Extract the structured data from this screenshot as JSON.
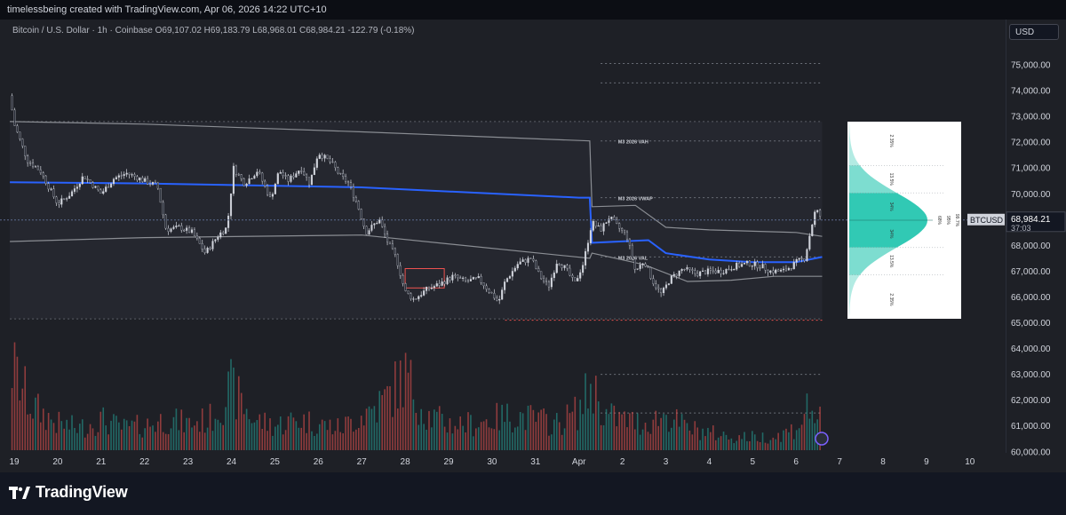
{
  "header": {
    "caption": "timelessbeing created with TradingView.com, Apr 06, 2026 14:22 UTC+10"
  },
  "legend": {
    "text": "Bitcoin / U.S. Dollar · 1h · Coinbase  O69,107.02  H69,183.79  L68,968.01  C68,984.21  -122.79 (-0.18%)"
  },
  "currency_label": "USD",
  "brand": {
    "name": "TradingView"
  },
  "colors": {
    "up": "#26a69a",
    "down": "#ef5350",
    "vwap": "#2962ff",
    "band": "#8a8d93",
    "profile_fill": "#26c6b0"
  },
  "chart_data": {
    "type": "candlestick",
    "symbol": "BTCUSD",
    "timeframe": "1h",
    "exchange": "Coinbase",
    "ohlc_last": {
      "open": 69107.02,
      "high": 69183.79,
      "low": 68968.01,
      "close": 68984.21,
      "change": -122.79,
      "change_pct": -0.18
    },
    "current_price_label": "68,984.21",
    "countdown": "37:03",
    "symbol_tag": "BTCUSD",
    "ylim": [
      60000,
      75500
    ],
    "price_ticks": [
      {
        "value": 75000,
        "label": "75,000.00"
      },
      {
        "value": 74000,
        "label": "74,000.00"
      },
      {
        "value": 73000,
        "label": "73,000.00"
      },
      {
        "value": 72000,
        "label": "72,000.00"
      },
      {
        "value": 71000,
        "label": "71,000.00"
      },
      {
        "value": 70000,
        "label": "70,000.00"
      },
      {
        "value": 69000,
        "label": "69,000.00"
      },
      {
        "value": 68000,
        "label": "68,000.00"
      },
      {
        "value": 67000,
        "label": "67,000.00"
      },
      {
        "value": 66000,
        "label": "66,000.00"
      },
      {
        "value": 65000,
        "label": "65,000.00"
      },
      {
        "value": 64000,
        "label": "64,000.00"
      },
      {
        "value": 63000,
        "label": "63,000.00"
      },
      {
        "value": 62000,
        "label": "62,000.00"
      },
      {
        "value": 61000,
        "label": "61,000.00"
      },
      {
        "value": 60000,
        "label": "60,000.00"
      }
    ],
    "x_ticks": [
      {
        "d": 19,
        "label": "19"
      },
      {
        "d": 20,
        "label": "20"
      },
      {
        "d": 21,
        "label": "21"
      },
      {
        "d": 22,
        "label": "22"
      },
      {
        "d": 23,
        "label": "23"
      },
      {
        "d": 24,
        "label": "24"
      },
      {
        "d": 25,
        "label": "25"
      },
      {
        "d": 26,
        "label": "26"
      },
      {
        "d": 27,
        "label": "27"
      },
      {
        "d": 28,
        "label": "28"
      },
      {
        "d": 29,
        "label": "29"
      },
      {
        "d": 30,
        "label": "30"
      },
      {
        "d": 31,
        "label": "31"
      },
      {
        "d": 32,
        "label": "Apr"
      },
      {
        "d": 33,
        "label": "2"
      },
      {
        "d": 34,
        "label": "3"
      },
      {
        "d": 35,
        "label": "4"
      },
      {
        "d": 36,
        "label": "5"
      },
      {
        "d": 37,
        "label": "6"
      },
      {
        "d": 38,
        "label": "7"
      },
      {
        "d": 39,
        "label": "8"
      },
      {
        "d": 40,
        "label": "9"
      },
      {
        "d": 41,
        "label": "10"
      }
    ],
    "price_path": [
      [
        18.9,
        73800
      ],
      [
        19.0,
        72700
      ],
      [
        19.3,
        71300
      ],
      [
        19.6,
        70900
      ],
      [
        20.0,
        69600
      ],
      [
        20.3,
        70000
      ],
      [
        20.6,
        70700
      ],
      [
        21.0,
        70000
      ],
      [
        21.3,
        70600
      ],
      [
        21.6,
        70800
      ],
      [
        22.0,
        70500
      ],
      [
        22.3,
        70300
      ],
      [
        22.5,
        68600
      ],
      [
        22.8,
        68700
      ],
      [
        23.1,
        68500
      ],
      [
        23.4,
        67700
      ],
      [
        23.7,
        68400
      ],
      [
        23.9,
        68700
      ],
      [
        24.05,
        71000
      ],
      [
        24.3,
        70400
      ],
      [
        24.6,
        70900
      ],
      [
        24.9,
        69800
      ],
      [
        25.1,
        70900
      ],
      [
        25.3,
        70500
      ],
      [
        25.6,
        71000
      ],
      [
        25.8,
        70400
      ],
      [
        26.0,
        71600
      ],
      [
        26.3,
        71200
      ],
      [
        26.5,
        70700
      ],
      [
        26.7,
        70400
      ],
      [
        26.9,
        69600
      ],
      [
        27.1,
        68500
      ],
      [
        27.4,
        69000
      ],
      [
        27.6,
        68100
      ],
      [
        27.8,
        67500
      ],
      [
        28.0,
        66200
      ],
      [
        28.2,
        65900
      ],
      [
        28.5,
        66300
      ],
      [
        28.8,
        66500
      ],
      [
        29.1,
        66800
      ],
      [
        29.4,
        66600
      ],
      [
        29.7,
        66700
      ],
      [
        29.9,
        66300
      ],
      [
        30.15,
        65800
      ],
      [
        30.3,
        66600
      ],
      [
        30.6,
        67300
      ],
      [
        30.9,
        67500
      ],
      [
        31.1,
        66800
      ],
      [
        31.3,
        66400
      ],
      [
        31.5,
        67400
      ],
      [
        31.7,
        67100
      ],
      [
        31.9,
        66500
      ],
      [
        32.1,
        67300
      ],
      [
        32.3,
        68900
      ],
      [
        32.5,
        68600
      ],
      [
        32.7,
        69100
      ],
      [
        32.9,
        68700
      ],
      [
        33.1,
        68400
      ],
      [
        33.3,
        67000
      ],
      [
        33.5,
        67400
      ],
      [
        33.7,
        66600
      ],
      [
        33.9,
        66100
      ],
      [
        34.1,
        66700
      ],
      [
        34.4,
        67100
      ],
      [
        34.7,
        66900
      ],
      [
        35.0,
        67000
      ],
      [
        35.3,
        67000
      ],
      [
        35.6,
        67200
      ],
      [
        35.9,
        67300
      ],
      [
        36.2,
        67200
      ],
      [
        36.4,
        67000
      ],
      [
        36.7,
        67000
      ],
      [
        36.9,
        67200
      ],
      [
        37.05,
        67400
      ],
      [
        37.2,
        67500
      ],
      [
        37.35,
        68700
      ],
      [
        37.45,
        69400
      ],
      [
        37.6,
        69000
      ]
    ],
    "volume_path": [
      [
        18.9,
        1.0
      ],
      [
        19.4,
        0.5
      ],
      [
        20.0,
        0.3
      ],
      [
        20.5,
        0.25
      ],
      [
        21.0,
        0.35
      ],
      [
        21.5,
        0.25
      ],
      [
        22.0,
        0.28
      ],
      [
        22.5,
        0.35
      ],
      [
        23.0,
        0.3
      ],
      [
        23.5,
        0.35
      ],
      [
        24.0,
        0.7
      ],
      [
        24.5,
        0.35
      ],
      [
        25.0,
        0.28
      ],
      [
        25.5,
        0.35
      ],
      [
        26.0,
        0.3
      ],
      [
        26.5,
        0.25
      ],
      [
        27.0,
        0.4
      ],
      [
        27.5,
        0.55
      ],
      [
        28.0,
        0.85
      ],
      [
        28.5,
        0.4
      ],
      [
        29.0,
        0.3
      ],
      [
        29.5,
        0.3
      ],
      [
        30.0,
        0.35
      ],
      [
        30.5,
        0.4
      ],
      [
        31.0,
        0.35
      ],
      [
        31.5,
        0.3
      ],
      [
        32.0,
        0.45
      ],
      [
        32.3,
        0.75
      ],
      [
        32.6,
        0.4
      ],
      [
        33.0,
        0.35
      ],
      [
        33.5,
        0.3
      ],
      [
        34.0,
        0.4
      ],
      [
        34.5,
        0.25
      ],
      [
        35.0,
        0.2
      ],
      [
        35.5,
        0.15
      ],
      [
        36.0,
        0.15
      ],
      [
        36.5,
        0.15
      ],
      [
        37.0,
        0.25
      ],
      [
        37.3,
        0.5
      ],
      [
        37.6,
        0.3
      ]
    ],
    "vwap_line": [
      [
        18.9,
        70450
      ],
      [
        22.0,
        70400
      ],
      [
        27.0,
        70250
      ],
      [
        32.0,
        69850
      ],
      [
        32.25,
        69850
      ],
      [
        32.3,
        68100
      ],
      [
        33.6,
        68200
      ],
      [
        34.0,
        67700
      ],
      [
        35.0,
        67450
      ],
      [
        36.0,
        67350
      ],
      [
        37.0,
        67350
      ],
      [
        37.6,
        67550
      ]
    ],
    "band_upper": [
      [
        18.9,
        72800
      ],
      [
        22.0,
        72700
      ],
      [
        27.0,
        72400
      ],
      [
        32.25,
        72050
      ],
      [
        32.3,
        69500
      ],
      [
        33.3,
        69550
      ],
      [
        34.0,
        68700
      ],
      [
        35.0,
        68600
      ],
      [
        36.0,
        68550
      ],
      [
        37.0,
        68500
      ],
      [
        37.6,
        68350
      ]
    ],
    "band_lower": [
      [
        18.9,
        68150
      ],
      [
        22.0,
        68300
      ],
      [
        27.0,
        68400
      ],
      [
        32.25,
        67500
      ],
      [
        32.3,
        67700
      ],
      [
        33.5,
        67250
      ],
      [
        34.5,
        66600
      ],
      [
        35.5,
        66650
      ],
      [
        36.5,
        66800
      ],
      [
        37.6,
        66800
      ]
    ],
    "value_box": {
      "x0": 18.9,
      "x1": 37.6,
      "top": 72800,
      "bottom": 65150
    },
    "levels": [
      {
        "price": 75050,
        "x0": 32.5,
        "x1": 37.6,
        "style": "dotted",
        "color": "#6b6f78",
        "label": ""
      },
      {
        "price": 74300,
        "x0": 32.5,
        "x1": 37.6,
        "style": "dotted",
        "color": "#6b6f78",
        "label": ""
      },
      {
        "price": 72050,
        "x0": 32.5,
        "x1": 37.6,
        "style": "dotted",
        "color": "#6b6f78",
        "label": "M3 2026 VAH"
      },
      {
        "price": 69850,
        "x0": 32.5,
        "x1": 37.6,
        "style": "dotted",
        "color": "#6b6f78",
        "label": "M3 2026 VWAP"
      },
      {
        "price": 67550,
        "x0": 32.5,
        "x1": 37.6,
        "style": "dotted",
        "color": "#6b6f78",
        "label": "M3 2026 VAL"
      },
      {
        "price": 65100,
        "x0": 30.3,
        "x1": 37.6,
        "style": "dotted",
        "color": "#ef5350",
        "label": ""
      },
      {
        "price": 63000,
        "x0": 32.5,
        "x1": 37.6,
        "style": "dotted",
        "color": "#6b6f78",
        "label": ""
      },
      {
        "price": 61500,
        "x0": 32.5,
        "x1": 37.6,
        "style": "dotted",
        "color": "#6b6f78",
        "label": ""
      }
    ],
    "red_rect": {
      "x0": 28.0,
      "x1": 28.9,
      "top": 67100,
      "bottom": 66350
    },
    "profile_inset": {
      "labels_left": [
        "2.35%",
        "13.5%",
        "34%",
        "34%",
        "13.5%",
        "2.35%"
      ],
      "labels_right": [
        "68%",
        "95%",
        "99.7%"
      ]
    }
  }
}
